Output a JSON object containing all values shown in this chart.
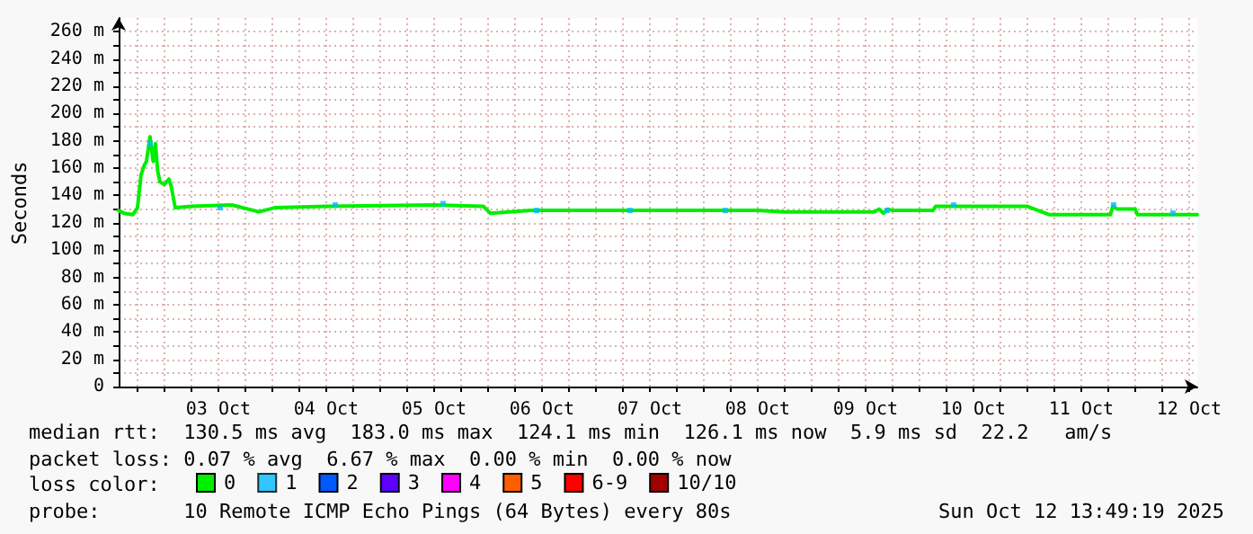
{
  "chart_data": {
    "type": "line",
    "ylabel": "Seconds",
    "legend_title": "loss color:",
    "legend": "bottom left",
    "grid": true,
    "xlim": [
      "2025-10-02T13:49",
      "2025-10-12T13:49"
    ],
    "xticks": [
      {
        "value": "2025-10-02T18:00",
        "label": null
      },
      {
        "value": "2025-10-03T00:00",
        "label": null
      },
      {
        "value": "2025-10-03T06:00",
        "label": null
      },
      {
        "value": "2025-10-03T12:00",
        "label": "03 Oct"
      },
      {
        "value": "2025-10-03T18:00",
        "label": null
      },
      {
        "value": "2025-10-04T00:00",
        "label": null
      },
      {
        "value": "2025-10-04T06:00",
        "label": null
      },
      {
        "value": "2025-10-04T12:00",
        "label": "04 Oct"
      },
      {
        "value": "2025-10-04T18:00",
        "label": null
      },
      {
        "value": "2025-10-05T00:00",
        "label": null
      },
      {
        "value": "2025-10-05T06:00",
        "label": null
      },
      {
        "value": "2025-10-05T12:00",
        "label": "05 Oct"
      },
      {
        "value": "2025-10-05T18:00",
        "label": null
      },
      {
        "value": "2025-10-06T00:00",
        "label": null
      },
      {
        "value": "2025-10-06T06:00",
        "label": null
      },
      {
        "value": "2025-10-06T12:00",
        "label": "06 Oct"
      },
      {
        "value": "2025-10-06T18:00",
        "label": null
      },
      {
        "value": "2025-10-07T00:00",
        "label": null
      },
      {
        "value": "2025-10-07T06:00",
        "label": null
      },
      {
        "value": "2025-10-07T12:00",
        "label": "07 Oct"
      },
      {
        "value": "2025-10-07T18:00",
        "label": null
      },
      {
        "value": "2025-10-08T00:00",
        "label": null
      },
      {
        "value": "2025-10-08T06:00",
        "label": null
      },
      {
        "value": "2025-10-08T12:00",
        "label": "08 Oct"
      },
      {
        "value": "2025-10-08T18:00",
        "label": null
      },
      {
        "value": "2025-10-09T00:00",
        "label": null
      },
      {
        "value": "2025-10-09T06:00",
        "label": null
      },
      {
        "value": "2025-10-09T12:00",
        "label": "09 Oct"
      },
      {
        "value": "2025-10-09T18:00",
        "label": null
      },
      {
        "value": "2025-10-10T00:00",
        "label": null
      },
      {
        "value": "2025-10-10T06:00",
        "label": null
      },
      {
        "value": "2025-10-10T12:00",
        "label": "10 Oct"
      },
      {
        "value": "2025-10-10T18:00",
        "label": null
      },
      {
        "value": "2025-10-11T00:00",
        "label": null
      },
      {
        "value": "2025-10-11T06:00",
        "label": null
      },
      {
        "value": "2025-10-11T12:00",
        "label": "11 Oct"
      },
      {
        "value": "2025-10-11T18:00",
        "label": null
      },
      {
        "value": "2025-10-12T00:00",
        "label": null
      },
      {
        "value": "2025-10-12T06:00",
        "label": null
      },
      {
        "value": "2025-10-12T12:00",
        "label": "12 Oct"
      }
    ],
    "ylim": [
      0,
      270
    ],
    "yticks": [
      0,
      {
        "value": 10,
        "label": null
      },
      {
        "value": 20,
        "label": "20 m"
      },
      {
        "value": 30,
        "label": null
      },
      {
        "value": 40,
        "label": "40 m"
      },
      {
        "value": 50,
        "label": null
      },
      {
        "value": 60,
        "label": "60 m"
      },
      {
        "value": 70,
        "label": null
      },
      {
        "value": 80,
        "label": "80 m"
      },
      {
        "value": 90,
        "label": null
      },
      {
        "value": 100,
        "label": "100 m"
      },
      {
        "value": 110,
        "label": null
      },
      {
        "value": 120,
        "label": "120 m"
      },
      {
        "value": 130,
        "label": null
      },
      {
        "value": 140,
        "label": "140 m"
      },
      {
        "value": 150,
        "label": null
      },
      {
        "value": 160,
        "label": "160 m"
      },
      {
        "value": 170,
        "label": null
      },
      {
        "value": 180,
        "label": "180 m"
      },
      {
        "value": 190,
        "label": null
      },
      {
        "value": 200,
        "label": "200 m"
      },
      {
        "value": 210,
        "label": null
      },
      {
        "value": 220,
        "label": "220 m"
      },
      {
        "value": 230,
        "label": null
      },
      {
        "value": 240,
        "label": "240 m"
      },
      {
        "value": 250,
        "label": null
      },
      {
        "value": 260,
        "label": "260 m"
      }
    ],
    "series": [
      {
        "name": "0",
        "color": "#00ee00",
        "x": [
          "2025-10-02T13:49",
          "2025-10-02T15:00",
          "2025-10-02T17:00",
          "2025-10-02T18:00",
          "2025-10-02T18:48",
          "2025-10-02T19:30",
          "2025-10-02T20:00",
          "2025-10-02T20:48",
          "2025-10-02T21:30",
          "2025-10-02T22:00",
          "2025-10-02T22:30",
          "2025-10-02T23:00",
          "2025-10-03T00:00",
          "2025-10-03T01:00",
          "2025-10-03T01:30",
          "2025-10-03T02:24",
          "2025-10-03T06:00",
          "2025-10-03T15:00",
          "2025-10-03T21:00",
          "2025-10-04T00:30",
          "2025-10-04T12:00",
          "2025-10-05T12:00",
          "2025-10-05T23:00",
          "2025-10-06T00:30",
          "2025-10-06T09:30",
          "2025-10-06T18:00",
          "2025-10-07T12:00",
          "2025-10-08T12:00",
          "2025-10-08T18:00",
          "2025-10-09T14:00",
          "2025-10-09T15:00",
          "2025-10-09T16:00",
          "2025-10-09T17:00",
          "2025-10-09T18:00",
          "2025-10-10T03:00",
          "2025-10-10T03:36",
          "2025-10-11T00:00",
          "2025-10-11T01:36",
          "2025-10-11T04:48",
          "2025-10-11T18:30",
          "2025-10-11T19:00",
          "2025-10-11T20:00",
          "2025-10-12T00:00",
          "2025-10-12T00:30",
          "2025-10-12T13:49"
        ],
        "values": [
          129,
          127,
          126,
          131,
          155,
          162,
          165,
          183,
          165,
          178,
          158,
          150,
          148,
          152,
          147,
          131,
          132,
          133,
          128,
          131,
          132,
          133,
          132,
          127,
          129,
          129,
          129,
          129,
          128,
          128,
          130,
          127,
          130,
          129,
          129,
          132,
          132,
          130,
          126,
          126,
          132,
          130,
          130,
          126,
          126
        ]
      },
      {
        "name": "1",
        "color": "#00b8ff",
        "type": "scatter",
        "marker": "square",
        "x": [
          "2025-10-02T20:48",
          "2025-10-03T12:24",
          "2025-10-04T14:00",
          "2025-10-05T14:00",
          "2025-10-06T10:48",
          "2025-10-07T07:36",
          "2025-10-08T04:48",
          "2025-10-09T16:48",
          "2025-10-10T07:36",
          "2025-10-11T19:12",
          "2025-10-12T08:24"
        ],
        "values": [
          178,
          131,
          133,
          134,
          129,
          129,
          129,
          129,
          133,
          133,
          127
        ]
      },
      {
        "name": "2",
        "color": "#0059ff"
      },
      {
        "name": "3",
        "color": "#5e00ff"
      },
      {
        "name": "4",
        "color": "#ff00ff"
      },
      {
        "name": "5",
        "color": "#ff5e00"
      },
      {
        "name": "6-9",
        "color": "#ff0000"
      },
      {
        "name": "10/10",
        "color": "#a10000"
      }
    ],
    "annotations": [
      "median rtt:  130.5 ms avg  183.0 ms max  124.1 ms min  126.1 ms now  5.9 ms sd  22.2   am/s",
      "packet loss: 0.07 % avg  6.67 % max  0.00 % min  0.00 % now",
      "probe:       10 Remote ICMP Echo Pings (64 Bytes) every 80s",
      "Sun Oct 12 13:49:19 2025"
    ]
  }
}
